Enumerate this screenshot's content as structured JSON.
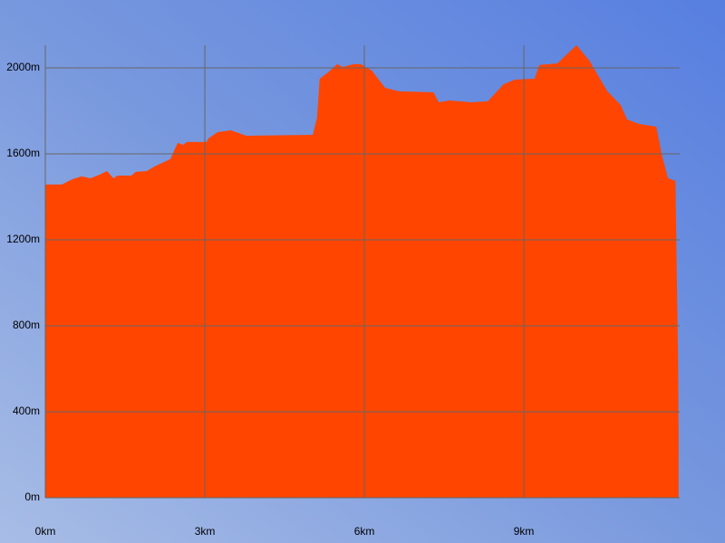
{
  "chart_data": {
    "type": "area",
    "x": [
      0,
      0.31,
      0.51,
      0.68,
      0.85,
      1.02,
      1.16,
      1.28,
      1.36,
      1.62,
      1.7,
      1.91,
      2.05,
      2.35,
      2.49,
      2.59,
      2.66,
      3.03,
      3.07,
      3.24,
      3.49,
      3.78,
      5.03,
      5.11,
      5.16,
      5.32,
      5.49,
      5.59,
      5.8,
      5.93,
      6.14,
      6.39,
      6.65,
      7.3,
      7.4,
      7.6,
      8.01,
      8.32,
      8.62,
      8.83,
      9.2,
      9.29,
      9.63,
      9.99,
      10.23,
      10.57,
      10.82,
      10.94,
      11.16,
      11.49,
      11.59,
      11.71,
      11.85,
      11.9,
      11.91
    ],
    "values": [
      1457,
      1457,
      1482,
      1495,
      1486,
      1503,
      1520,
      1486,
      1499,
      1499,
      1516,
      1520,
      1541,
      1575,
      1651,
      1642,
      1655,
      1655,
      1672,
      1701,
      1709,
      1684,
      1688,
      1768,
      1949,
      1979,
      2017,
      2004,
      2017,
      2017,
      1987,
      1907,
      1891,
      1886,
      1840,
      1848,
      1840,
      1844,
      1924,
      1945,
      1949,
      2013,
      2021,
      2105,
      2034,
      1891,
      1827,
      1760,
      1739,
      1726,
      1600,
      1486,
      1474,
      632,
      295
    ],
    "color": "#ff4500",
    "xlim": [
      0,
      11.93
    ],
    "ylim": [
      0,
      2105
    ],
    "xticks": [
      {
        "value": 0,
        "label": "0km"
      },
      {
        "value": 3,
        "label": "3km"
      },
      {
        "value": 6,
        "label": "6km"
      },
      {
        "value": 9,
        "label": "9km"
      }
    ],
    "yticks": [
      {
        "value": 0,
        "label": "0m"
      },
      {
        "value": 400,
        "label": "400m"
      },
      {
        "value": 800,
        "label": "800m"
      },
      {
        "value": 1200,
        "label": "1200m"
      },
      {
        "value": 1600,
        "label": "1600m"
      },
      {
        "value": 2000,
        "label": "2000m"
      }
    ],
    "grid": true
  }
}
